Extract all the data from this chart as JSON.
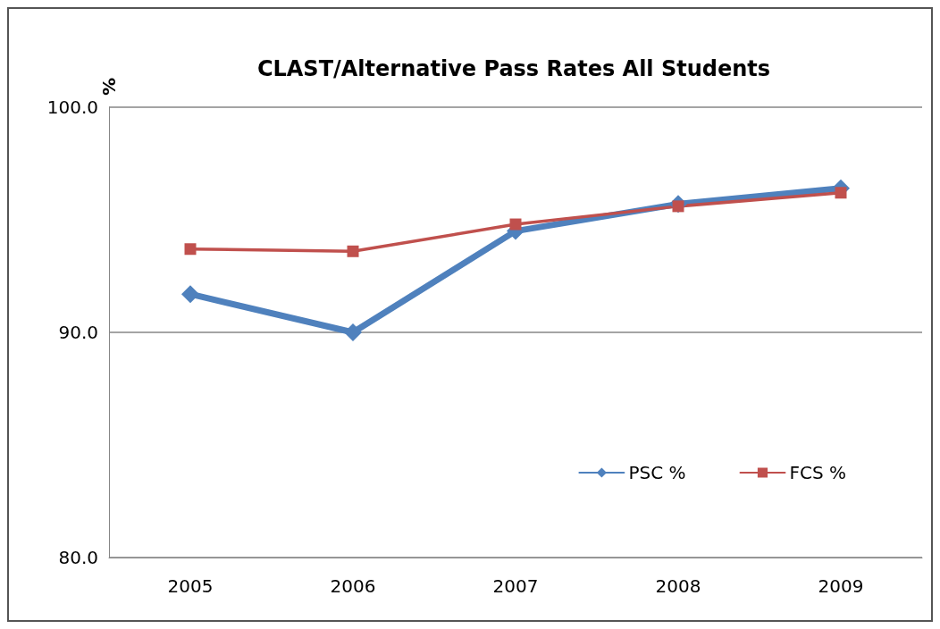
{
  "chart_data": {
    "type": "line",
    "title": "CLAST/Alternative Pass Rates All Students",
    "ylabel": "%",
    "categories": [
      "2005",
      "2006",
      "2007",
      "2008",
      "2009"
    ],
    "series": [
      {
        "name": "PSC %",
        "color": "#4f81bd",
        "marker": "diamond",
        "values": [
          91.7,
          90.0,
          94.5,
          95.7,
          96.4
        ]
      },
      {
        "name": "FCS %",
        "color": "#c0504d",
        "marker": "square",
        "values": [
          93.7,
          93.6,
          94.8,
          95.6,
          96.2
        ]
      }
    ],
    "ylim": [
      80,
      100
    ],
    "yticks": [
      {
        "value": 80,
        "label": "80.0"
      },
      {
        "value": 90,
        "label": "90.0"
      },
      {
        "value": 100,
        "label": "100.0"
      }
    ],
    "grid": "y",
    "legend": "bottom right",
    "line_style": "solid"
  }
}
